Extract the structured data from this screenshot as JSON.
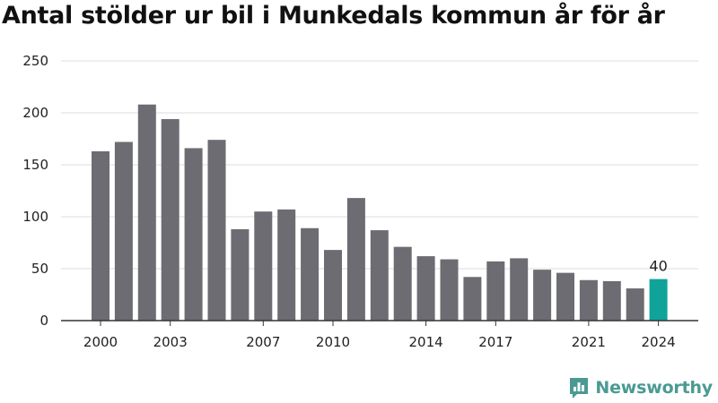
{
  "chart_data": {
    "type": "bar",
    "title": "Antal stölder ur bil i Munkedals kommun år för år",
    "xlabel": "",
    "ylabel": "",
    "categories": [
      "2000",
      "2001",
      "2002",
      "2003",
      "2004",
      "2005",
      "2006",
      "2007",
      "2008",
      "2009",
      "2010",
      "2011",
      "2012",
      "2013",
      "2014",
      "2015",
      "2016",
      "2017",
      "2018",
      "2019",
      "2020",
      "2021",
      "2022",
      "2023",
      "2024"
    ],
    "values": [
      163,
      172,
      208,
      194,
      166,
      174,
      88,
      105,
      107,
      89,
      68,
      118,
      87,
      71,
      62,
      59,
      42,
      57,
      60,
      49,
      46,
      39,
      38,
      31,
      40
    ],
    "x_tick_labels": [
      "2000",
      "2003",
      "2007",
      "2010",
      "2014",
      "2017",
      "2021",
      "2024"
    ],
    "y_ticks": [
      0,
      50,
      100,
      150,
      200,
      250
    ],
    "ylim": [
      0,
      250
    ],
    "grid": true,
    "legend": "none",
    "highlight": {
      "category": "2024",
      "label": "40"
    },
    "colors": {
      "bar": "#6d6c72",
      "highlight": "#0fa39a",
      "grid": "#dcdcdc",
      "axis": "#333333"
    }
  },
  "brand": {
    "name": "Newsworthy",
    "icon": "bar-chart-logo-icon",
    "color": "#4a9a92"
  }
}
